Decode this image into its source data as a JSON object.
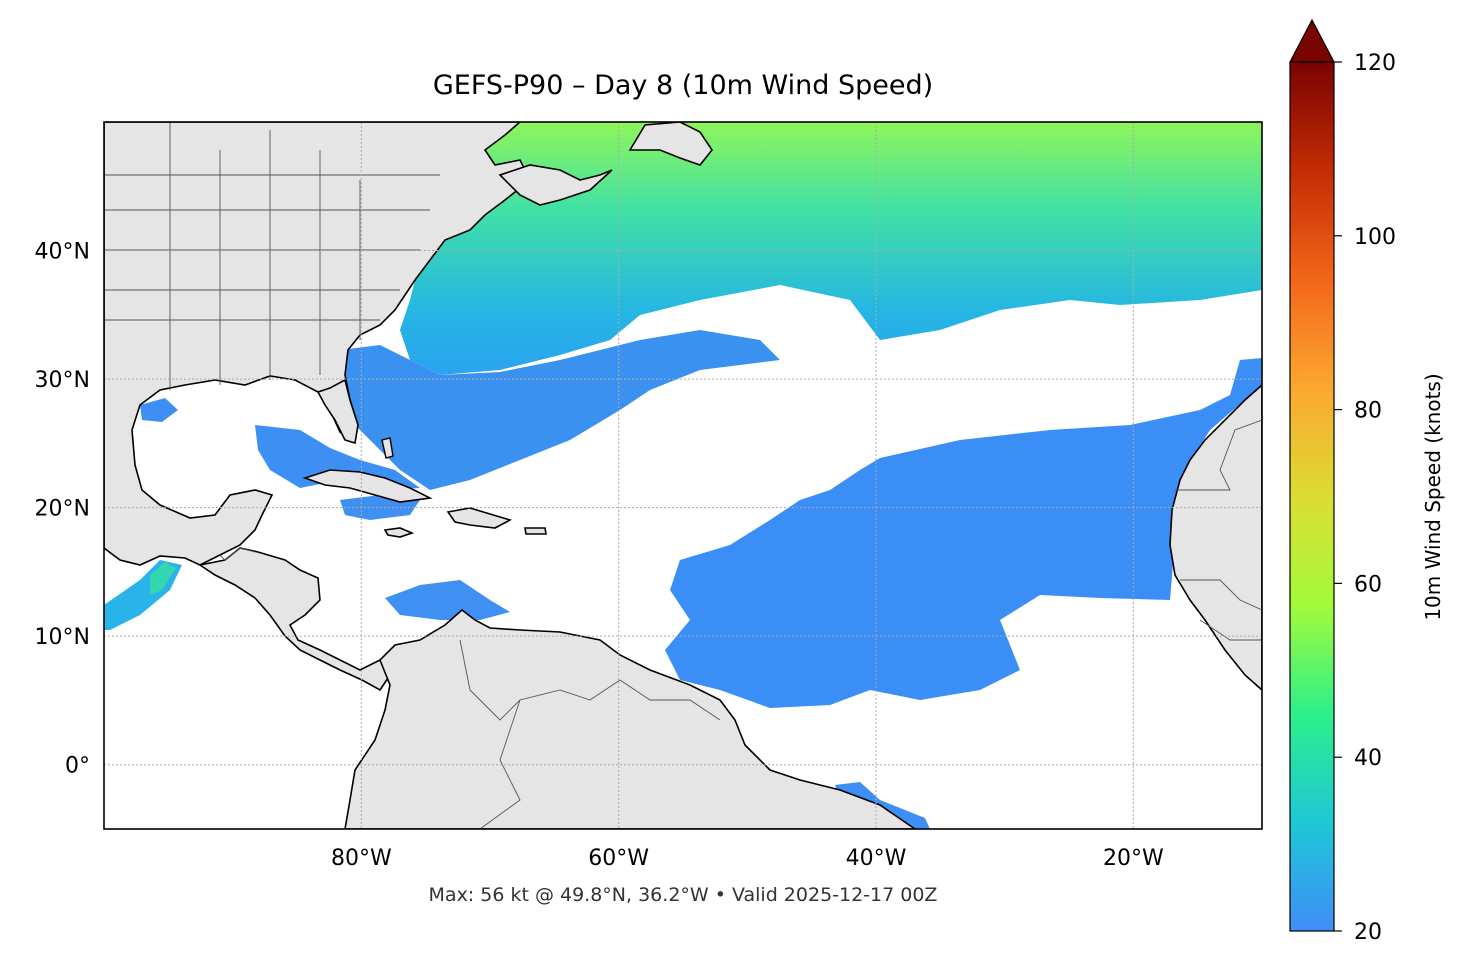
{
  "title": "GEFS-P90 – Day 8 (10m Wind Speed)",
  "footer": "Max: 56 kt @ 49.8°N, 36.2°W • Valid 2025-12-17 00Z",
  "map": {
    "lon_range": [
      -100,
      -10
    ],
    "lat_range": [
      -5,
      50
    ],
    "lon_ticks": [
      {
        "value": -80,
        "label": "80°W"
      },
      {
        "value": -60,
        "label": "60°W"
      },
      {
        "value": -40,
        "label": "40°W"
      },
      {
        "value": -20,
        "label": "20°W"
      }
    ],
    "lat_ticks": [
      {
        "value": 40,
        "label": "40°N"
      },
      {
        "value": 30,
        "label": "30°N"
      },
      {
        "value": 20,
        "label": "20°N"
      },
      {
        "value": 10,
        "label": "10°N"
      },
      {
        "value": 0,
        "label": "0°"
      }
    ],
    "gridlines": true,
    "land_color": "#e5e5e5",
    "ocean_no_data_color": "#ffffff"
  },
  "colorbar": {
    "label": "10m Wind Speed (knots)",
    "range": [
      20,
      120
    ],
    "extend": "max",
    "ticks": [
      {
        "value": 120,
        "label": "120"
      },
      {
        "value": 100,
        "label": "100"
      },
      {
        "value": 80,
        "label": "80"
      },
      {
        "value": 60,
        "label": "60"
      },
      {
        "value": 40,
        "label": "40"
      },
      {
        "value": 20,
        "label": "20"
      }
    ],
    "colors": [
      "#3f8df7",
      "#1ec8d6",
      "#2cf08a",
      "#a3fa3a",
      "#dbdc32",
      "#fba830",
      "#f26619",
      "#c42c04",
      "#7a0402"
    ]
  },
  "chart_data": {
    "type": "heatmap",
    "variable": "10m Wind Speed",
    "units": "knots",
    "max": {
      "value": 56,
      "lat": 49.8,
      "lon": -36.2
    },
    "valid": "2025-12-17 00Z",
    "regions": [
      {
        "name": "northwest-atlantic",
        "approx_kt": 28
      },
      {
        "name": "north-central-atlantic-maximum",
        "approx_kt": 50
      },
      {
        "name": "gulf-of-mexico",
        "approx_kt": 24
      },
      {
        "name": "subtropical-band",
        "approx_kt": 23
      },
      {
        "name": "trade-wind-belt",
        "approx_kt": 23
      },
      {
        "name": "caribbean",
        "approx_kt": 22
      },
      {
        "name": "eastern-pacific",
        "approx_kt": 30
      }
    ]
  }
}
